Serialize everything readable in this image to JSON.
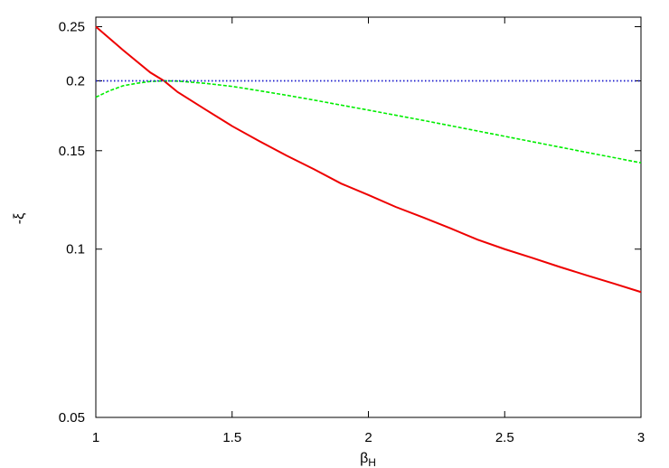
{
  "chart_data": {
    "type": "line",
    "xlabel": "β",
    "xlabel_sub": "H",
    "ylabel": "-ξ",
    "xlim": [
      1,
      3
    ],
    "ylim": [
      0.05,
      0.26
    ],
    "y_scale": "log",
    "grid": false,
    "legend": "none",
    "x_ticks": [
      {
        "value": 1,
        "label": "1"
      },
      {
        "value": 1.5,
        "label": "1.5"
      },
      {
        "value": 2,
        "label": "2"
      },
      {
        "value": 2.5,
        "label": "2.5"
      },
      {
        "value": 3,
        "label": "3"
      }
    ],
    "y_ticks": [
      {
        "value": 0.05,
        "label": "0.05"
      },
      {
        "value": 0.1,
        "label": "0.1"
      },
      {
        "value": 0.15,
        "label": "0.15"
      },
      {
        "value": 0.2,
        "label": "0.2"
      },
      {
        "value": 0.25,
        "label": "0.25"
      }
    ],
    "series": [
      {
        "color": "#ee0000",
        "style": "solid",
        "x": [
          1.0,
          1.1,
          1.2,
          1.25,
          1.3,
          1.4,
          1.5,
          1.6,
          1.7,
          1.8,
          1.9,
          2.0,
          2.1,
          2.2,
          2.3,
          2.4,
          2.5,
          2.6,
          2.7,
          2.8,
          2.9,
          3.0
        ],
        "y": [
          0.25,
          0.227,
          0.207,
          0.2,
          0.191,
          0.178,
          0.166,
          0.156,
          0.147,
          0.139,
          0.131,
          0.125,
          0.119,
          0.114,
          0.109,
          0.104,
          0.1,
          0.0965,
          0.093,
          0.0898,
          0.0868,
          0.0838
        ]
      },
      {
        "color": "#00ee00",
        "style": "dashed",
        "x": [
          1.0,
          1.05,
          1.1,
          1.15,
          1.2,
          1.25,
          1.3,
          1.4,
          1.5,
          1.6,
          1.7,
          1.8,
          1.9,
          2.0,
          2.2,
          2.4,
          2.6,
          2.8,
          3.0
        ],
        "y": [
          0.187,
          0.192,
          0.196,
          0.198,
          0.1995,
          0.2,
          0.1998,
          0.198,
          0.1955,
          0.192,
          0.1885,
          0.1848,
          0.181,
          0.1773,
          0.17,
          0.1627,
          0.1557,
          0.149,
          0.1427
        ]
      },
      {
        "color": "#1a1acc",
        "style": "dotted",
        "x": [
          1.0,
          3.0
        ],
        "y": [
          0.2,
          0.2
        ]
      }
    ]
  }
}
